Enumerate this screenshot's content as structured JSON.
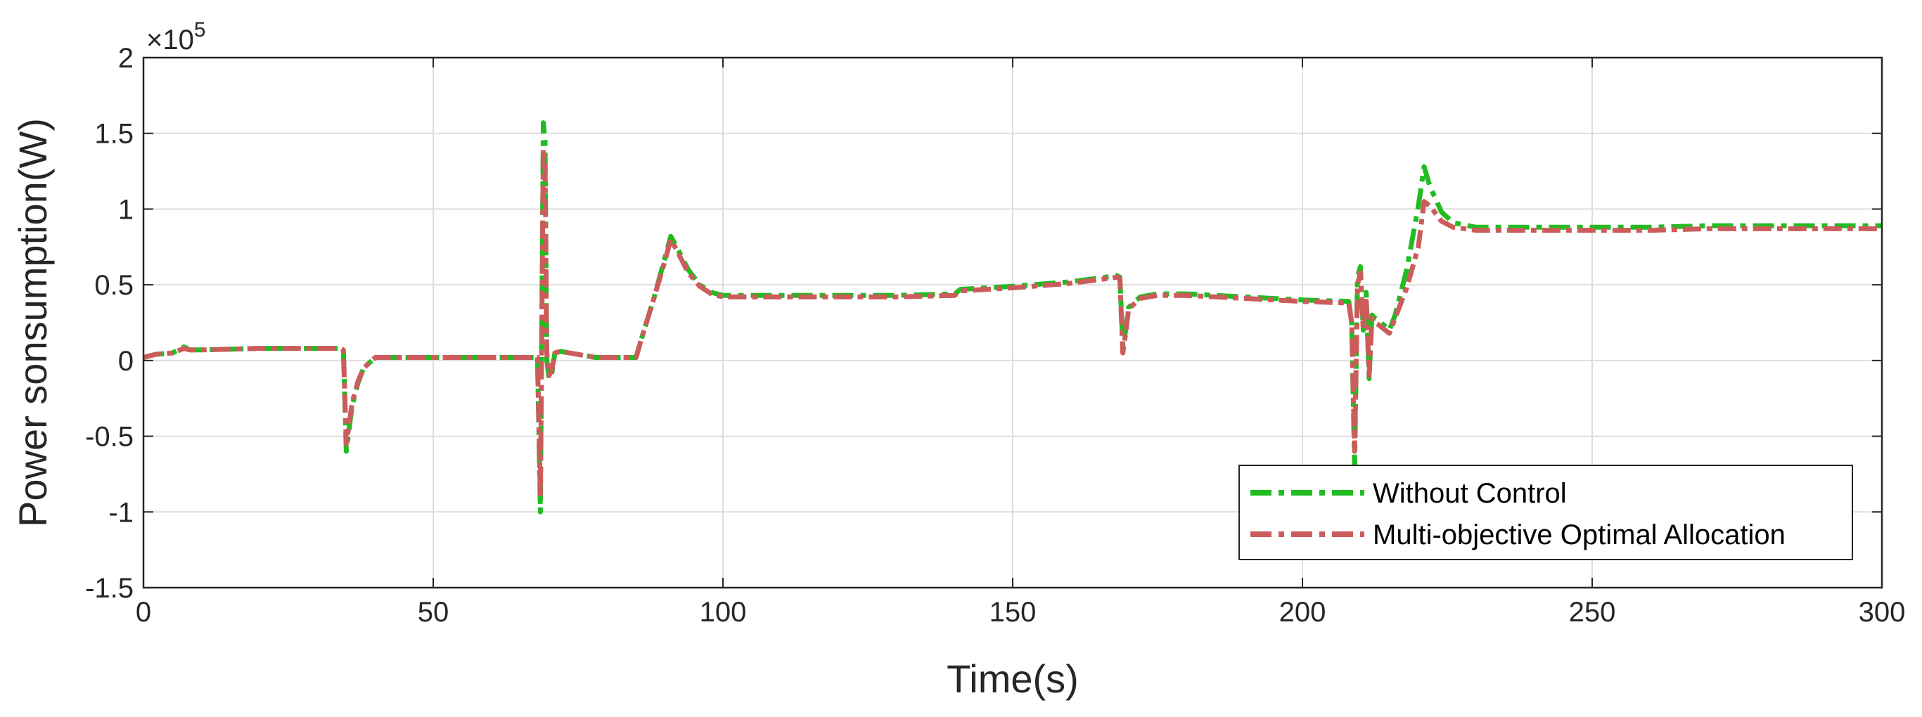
{
  "chart_data": {
    "type": "line",
    "xlabel": "Time(s)",
    "ylabel": "Power sonsumption(W)",
    "y_exponent_label": "×10",
    "y_exponent_power": "5",
    "xlim": [
      0,
      300
    ],
    "ylim": [
      -1.5,
      2
    ],
    "x_ticks": [
      0,
      50,
      100,
      150,
      200,
      250,
      300
    ],
    "x_tick_labels": [
      "0",
      "50",
      "100",
      "150",
      "200",
      "250",
      "300"
    ],
    "y_ticks": [
      -1.5,
      -1,
      -0.5,
      0,
      0.5,
      1,
      1.5,
      2
    ],
    "y_tick_labels": [
      "-1.5",
      "-1",
      "-0.5",
      "0",
      "0.5",
      "1",
      "1.5",
      "2"
    ],
    "grid": true,
    "legend_position": "bottom-right",
    "series": [
      {
        "name": "Without Control",
        "color": "#22bb22",
        "x": [
          0,
          2,
          5,
          7,
          8,
          10,
          20,
          30,
          34,
          34.5,
          35,
          35.5,
          36,
          37,
          38,
          40,
          50,
          60,
          68,
          68.5,
          69,
          69.3,
          69.6,
          70,
          70.5,
          71,
          72,
          75,
          78,
          80,
          85,
          86,
          88,
          90,
          91,
          92,
          94,
          96,
          98,
          100,
          110,
          120,
          130,
          140,
          141,
          150,
          160,
          168,
          168.5,
          169,
          169.5,
          170,
          172,
          175,
          180,
          190,
          200,
          208,
          208.5,
          209,
          209.5,
          210,
          210.5,
          211,
          211.5,
          212,
          212.5,
          213,
          215,
          216,
          218,
          220,
          221,
          222,
          224,
          226,
          230,
          240,
          250,
          260,
          270,
          280,
          290,
          300
        ],
        "y": [
          0.02,
          0.04,
          0.05,
          0.09,
          0.07,
          0.07,
          0.08,
          0.08,
          0.08,
          0.07,
          -0.6,
          -0.45,
          -0.3,
          -0.15,
          -0.05,
          0.02,
          0.02,
          0.02,
          0.02,
          -1.0,
          1.57,
          1.45,
          0.0,
          -0.12,
          -0.08,
          0.05,
          0.06,
          0.04,
          0.02,
          0.02,
          0.02,
          0.15,
          0.4,
          0.68,
          0.82,
          0.75,
          0.6,
          0.5,
          0.45,
          0.43,
          0.43,
          0.43,
          0.43,
          0.44,
          0.47,
          0.49,
          0.52,
          0.56,
          0.55,
          0.1,
          0.2,
          0.35,
          0.42,
          0.44,
          0.44,
          0.42,
          0.4,
          0.39,
          0.25,
          -0.7,
          0.55,
          0.62,
          0.2,
          0.45,
          -0.12,
          0.3,
          0.28,
          0.27,
          0.2,
          0.3,
          0.6,
          1.02,
          1.28,
          1.15,
          0.98,
          0.91,
          0.88,
          0.88,
          0.88,
          0.88,
          0.89,
          0.89,
          0.89,
          0.89
        ]
      },
      {
        "name": "Multi-objective Optimal Allocation",
        "color": "#cc5c5c",
        "x": [
          0,
          2,
          5,
          7,
          8,
          10,
          20,
          30,
          34,
          34.5,
          35,
          35.5,
          36,
          37,
          38,
          40,
          50,
          60,
          68,
          68.5,
          69,
          69.3,
          69.6,
          70,
          70.5,
          71,
          72,
          75,
          78,
          80,
          85,
          86,
          88,
          90,
          91,
          92,
          94,
          96,
          98,
          100,
          110,
          120,
          130,
          140,
          141,
          150,
          160,
          168,
          168.5,
          169,
          169.5,
          170,
          172,
          175,
          180,
          190,
          200,
          208,
          208.5,
          209,
          209.5,
          210,
          210.5,
          211,
          211.5,
          212,
          212.5,
          213,
          215,
          216,
          218,
          220,
          221,
          222,
          224,
          226,
          230,
          240,
          250,
          260,
          270,
          280,
          290,
          300
        ],
        "y": [
          0.02,
          0.04,
          0.05,
          0.08,
          0.07,
          0.07,
          0.08,
          0.08,
          0.08,
          0.07,
          -0.55,
          -0.42,
          -0.28,
          -0.14,
          -0.05,
          0.02,
          0.02,
          0.02,
          0.02,
          -0.9,
          1.4,
          1.3,
          0.05,
          -0.1,
          -0.06,
          0.05,
          0.06,
          0.04,
          0.02,
          0.02,
          0.02,
          0.15,
          0.4,
          0.66,
          0.8,
          0.73,
          0.58,
          0.49,
          0.44,
          0.42,
          0.42,
          0.42,
          0.42,
          0.43,
          0.46,
          0.48,
          0.51,
          0.55,
          0.54,
          0.05,
          0.18,
          0.34,
          0.41,
          0.43,
          0.43,
          0.41,
          0.39,
          0.38,
          0.25,
          -0.6,
          0.5,
          0.58,
          0.2,
          0.42,
          -0.1,
          0.28,
          0.25,
          0.24,
          0.18,
          0.28,
          0.48,
          0.75,
          1.05,
          1.02,
          0.92,
          0.88,
          0.86,
          0.86,
          0.86,
          0.86,
          0.87,
          0.87,
          0.87,
          0.87
        ]
      }
    ]
  }
}
